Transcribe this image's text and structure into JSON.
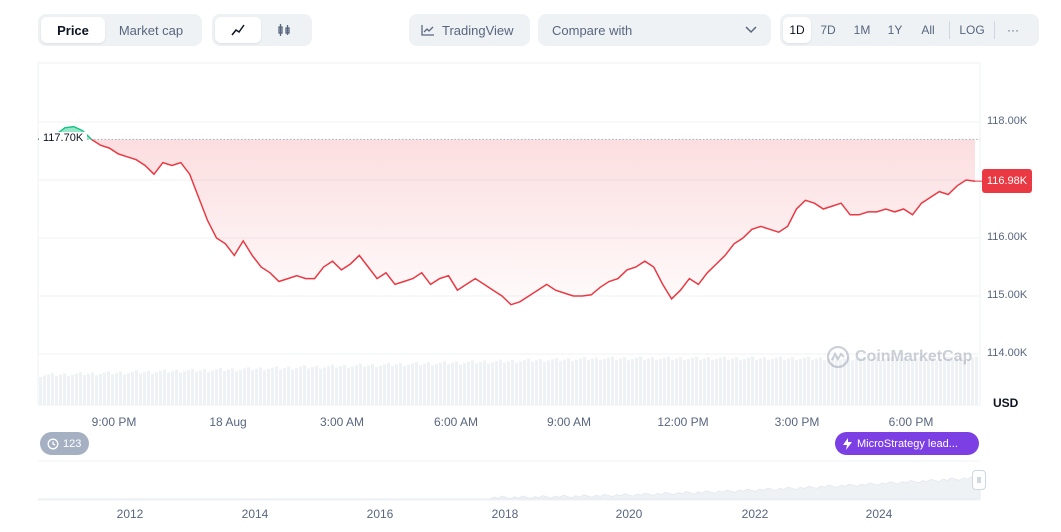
{
  "toolbar": {
    "view_tabs": [
      "Price",
      "Market cap"
    ],
    "active_view": "Price",
    "tradingview_label": "TradingView",
    "compare_placeholder": "Compare with",
    "ranges": [
      "1D",
      "7D",
      "1M",
      "1Y",
      "All"
    ],
    "active_range": "1D",
    "log_label": "LOG",
    "more_label": "···"
  },
  "chart_data": {
    "type": "area",
    "y_unit": "USD",
    "ylim": [
      113500,
      118900
    ],
    "yticks": [
      "118.00K",
      "116.00K",
      "115.00K",
      "114.00K"
    ],
    "x_ticks": [
      "9:00 PM",
      "18 Aug",
      "3:00 AM",
      "6:00 AM",
      "9:00 AM",
      "12:00 PM",
      "3:00 PM",
      "6:00 PM"
    ],
    "baseline_label": "117.70K",
    "baseline_value": 117700,
    "current_price_label": "116.98K",
    "current_price": 116980,
    "series": [
      {
        "values": [
          117700,
          117750,
          117780,
          117900,
          117920,
          117850,
          117700,
          117600,
          117550,
          117450,
          117400,
          117350,
          117250,
          117100,
          117300,
          117250,
          117300,
          117100,
          116700,
          116300,
          116000,
          115900,
          115700,
          115950,
          115700,
          115500,
          115400,
          115250,
          115300,
          115350,
          115300,
          115300,
          115500,
          115600,
          115450,
          115550,
          115700,
          115500,
          115300,
          115400,
          115200,
          115250,
          115300,
          115400,
          115200,
          115300,
          115350,
          115100,
          115200,
          115300,
          115200,
          115100,
          115000,
          114850,
          114900,
          115000,
          115100,
          115200,
          115100,
          115050,
          115000,
          115000,
          115020,
          115150,
          115250,
          115300,
          115450,
          115500,
          115600,
          115500,
          115200,
          114950,
          115100,
          115300,
          115200,
          115400,
          115550,
          115700,
          115900,
          116000,
          116150,
          116200,
          116150,
          116100,
          116200,
          116500,
          116650,
          116600,
          116500,
          116550,
          116600,
          116400,
          116400,
          116450,
          116450,
          116500,
          116450,
          116500,
          116400,
          116600,
          116700,
          116800,
          116750,
          116900,
          117000,
          116980
        ]
      }
    ],
    "volume_present": true,
    "navigator_years": [
      "2012",
      "2014",
      "2016",
      "2018",
      "2020",
      "2022",
      "2024"
    ]
  },
  "events": {
    "count_label": "123",
    "headline_label": "MicroStrategy lead..."
  },
  "watermark": "CoinMarketCap",
  "colors": {
    "down": "#ea3943",
    "up": "#16c784",
    "accent": "#7b3fe4"
  }
}
